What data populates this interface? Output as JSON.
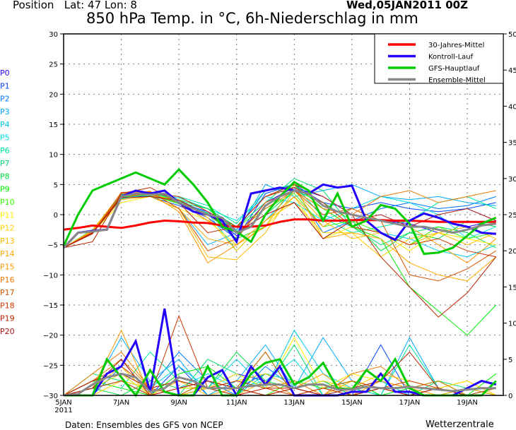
{
  "header": {
    "position": "Position   Lat: 47 Lon: 8",
    "run": "Wed,05JAN2011  00Z",
    "title": "850 hPa Temp. in °C, 6h-Niederschlag in mm"
  },
  "footer": {
    "source": "Daten: Ensembles des GFS von NCEP",
    "brand": "Wetterzentrale"
  },
  "chart_data": {
    "type": "line",
    "title": "850 hPa Temp. in °C, 6h-Niederschlag in mm",
    "x_unit": "days since run start (05JAN2011 00Z)",
    "x_ticks": [
      {
        "day": 0,
        "label": "5JAN",
        "sub": "2011"
      },
      {
        "day": 2,
        "label": "7JAN"
      },
      {
        "day": 4,
        "label": "9JAN"
      },
      {
        "day": 6,
        "label": "11JAN"
      },
      {
        "day": 8,
        "label": "13JAN"
      },
      {
        "day": 10,
        "label": "15JAN"
      },
      {
        "day": 12,
        "label": "17JAN"
      },
      {
        "day": 14,
        "label": "19JAN"
      }
    ],
    "xlim": [
      0,
      15.25
    ],
    "ylim_left": [
      -30,
      30
    ],
    "yticks_left": [
      -30,
      -25,
      -20,
      -15,
      -10,
      -5,
      0,
      5,
      10,
      15,
      20,
      25,
      30
    ],
    "ylim_right": [
      0,
      50
    ],
    "yticks_right": [
      0,
      5,
      10,
      15,
      20,
      25,
      30,
      35,
      40,
      45,
      50
    ],
    "grid": true,
    "legend_placement": "top-right",
    "main_step_days": 0.5,
    "member_step_days": 1,
    "main_series": [
      {
        "name": "30-Jahres-Mittel",
        "color": "#ff0000",
        "width": 3,
        "temp": [
          -2.5,
          -2.2,
          -1.8,
          -2,
          -2.2,
          -1.8,
          -1.3,
          -1,
          -1.1,
          -1.3,
          -1.4,
          -1.8,
          -2,
          -2,
          -1.8,
          -1.2,
          -0.8,
          -0.8,
          -1,
          -1,
          -0.9,
          -0.9,
          -0.9,
          -1,
          -1,
          -1.1,
          -1.2,
          -1.2,
          -1.2,
          -1.2,
          -1.2
        ],
        "precip": null
      },
      {
        "name": "Kontroll-Lauf",
        "color": "#2200ff",
        "width": 3,
        "temp": [
          -5.5,
          -3,
          -2.7,
          -2.5,
          3,
          4,
          3.5,
          4,
          2,
          0.5,
          0,
          -1,
          -4.5,
          3.5,
          4,
          4.5,
          4,
          3.5,
          5,
          4.5,
          4.8,
          -1,
          -3,
          -4.2,
          -1,
          0.2,
          -0.5,
          -1.5,
          -2,
          -3,
          -3.2
        ],
        "precip": [
          0,
          0,
          0,
          3,
          4,
          7.5,
          0.5,
          12,
          0,
          0,
          2.5,
          3.5,
          0,
          4,
          1.5,
          4,
          0,
          0,
          0,
          0,
          0.5,
          0.5,
          3,
          0.5,
          0.5,
          0,
          0,
          0,
          1,
          2,
          1.5
        ]
      },
      {
        "name": "GFS-Hauptlauf",
        "color": "#00cc00",
        "width": 3,
        "temp": [
          -5.2,
          0,
          4,
          5,
          6,
          7,
          6,
          5,
          7.5,
          5,
          2,
          -2,
          -2.8,
          -4.5,
          0,
          3,
          5.4,
          4,
          -1,
          3.5,
          -2,
          -1,
          1.6,
          1,
          -1.5,
          -6.5,
          -6.3,
          -5.5,
          -3.5,
          -1.5,
          -0.5
        ],
        "precip": [
          0,
          0,
          0,
          5,
          2.5,
          0,
          3.5,
          0.5,
          0,
          0,
          4,
          0,
          0,
          3,
          4.5,
          5,
          1.5,
          2.5,
          4.5,
          1,
          0.8,
          3.5,
          2,
          5,
          1,
          0,
          0,
          0,
          0,
          0,
          2
        ]
      },
      {
        "name": "Ensemble-Mittel",
        "color": "#888888",
        "width": 3,
        "temp": [
          -5.5,
          -3,
          -2.8,
          -2.5,
          3,
          3.5,
          3.3,
          3.5,
          2,
          1,
          0,
          -0.5,
          -3,
          -2,
          1.5,
          3,
          4,
          3.5,
          1.5,
          0.5,
          0,
          -0.5,
          -1,
          -1.5,
          -2,
          -2,
          -2.5,
          -3,
          -2.5,
          -1.8,
          -1.5
        ],
        "precip": [
          0,
          0.2,
          1.5,
          2.5,
          3,
          2.5,
          0.5,
          1,
          2.5,
          2,
          1,
          1,
          1,
          1.3,
          1.5,
          1.5,
          1,
          1.5,
          1.5,
          0.8,
          0.8,
          1.2,
          1,
          1,
          1.2,
          1,
          0.8,
          0.6,
          0.8,
          1,
          1
        ]
      }
    ],
    "members": [
      {
        "name": "P0",
        "color": "#3300ff",
        "temp": [
          -5.5,
          -2.8,
          3.2,
          3.5,
          2,
          0.5,
          -3.5,
          2,
          4.5,
          3,
          0,
          -1,
          -1.5,
          -3,
          -2,
          -1
        ],
        "precip": [
          0,
          2,
          5,
          1,
          0,
          1,
          3,
          2,
          0,
          0,
          1,
          0,
          0,
          0,
          1,
          0
        ]
      },
      {
        "name": "P1",
        "color": "#0044ff",
        "temp": [
          -5.5,
          -3,
          3,
          3,
          1.5,
          -0.5,
          -4,
          3.5,
          5,
          2,
          1,
          2,
          1,
          0.5,
          1,
          2
        ],
        "precip": [
          0,
          1,
          3,
          0,
          4,
          0,
          1,
          3,
          1,
          0,
          0,
          7,
          0,
          1,
          0,
          0
        ]
      },
      {
        "name": "P2",
        "color": "#0077ff",
        "temp": [
          -5.5,
          -2.6,
          2.8,
          3.8,
          2.5,
          0,
          -2.5,
          4,
          4.5,
          -3,
          -1,
          1,
          2,
          1,
          1.5,
          3
        ],
        "precip": [
          0,
          0,
          4,
          1,
          6,
          2,
          0,
          4,
          1,
          2,
          0,
          1,
          0,
          0,
          0,
          0
        ]
      },
      {
        "name": "P3",
        "color": "#00aaff",
        "temp": [
          -5.5,
          -2.7,
          3.4,
          3,
          1,
          -5,
          -3,
          5,
          3,
          4,
          5,
          3,
          2.5,
          3,
          2,
          1.5
        ],
        "precip": [
          0,
          1,
          8,
          2,
          5,
          0,
          2,
          7,
          1,
          8,
          2,
          0,
          8,
          1,
          0,
          0
        ]
      },
      {
        "name": "P4",
        "color": "#00ccee",
        "temp": [
          -5.5,
          -3.1,
          3,
          3.2,
          2.2,
          0.3,
          -6,
          -1,
          4,
          0,
          -2,
          -3,
          -4,
          -6,
          -7,
          -5
        ],
        "precip": [
          0,
          2,
          3,
          1,
          4,
          1,
          5,
          1,
          9,
          3,
          1,
          2,
          0,
          1,
          0,
          0
        ]
      },
      {
        "name": "P5",
        "color": "#00e0e0",
        "temp": [
          -5.5,
          -2.9,
          2.6,
          3.4,
          2.8,
          1,
          -1,
          3,
          2,
          -1,
          1,
          3,
          2,
          0,
          -4,
          -2
        ],
        "precip": [
          0,
          1,
          2,
          0,
          1,
          3,
          1,
          2,
          5,
          0,
          1,
          0,
          1,
          2,
          0,
          1
        ]
      },
      {
        "name": "P6",
        "color": "#00e8a0",
        "temp": [
          -5.5,
          -2.5,
          3.1,
          3.6,
          3,
          1.5,
          -1.5,
          4,
          5,
          -0.5,
          -3,
          -2,
          -1,
          2,
          3,
          1
        ],
        "precip": [
          0,
          2,
          1,
          6,
          2,
          1,
          0,
          3,
          2,
          1,
          1,
          0,
          7,
          1,
          0,
          0
        ]
      },
      {
        "name": "P7",
        "color": "#00e070",
        "temp": [
          -5.5,
          -2.8,
          3.3,
          3.1,
          2,
          1,
          -2,
          2,
          6,
          4,
          -2,
          -5,
          -3,
          -2,
          -3,
          -5.5
        ],
        "precip": [
          0,
          3,
          2,
          1,
          0,
          5,
          3,
          1,
          7,
          0,
          2,
          1,
          0,
          2,
          1,
          0
        ]
      },
      {
        "name": "P8",
        "color": "#00dd40",
        "temp": [
          -5.5,
          -3,
          2.9,
          3.5,
          2.5,
          1,
          -3,
          0,
          4,
          2,
          -1,
          -6,
          -3,
          -4,
          -1,
          -2
        ],
        "precip": [
          0,
          1,
          0,
          2,
          1,
          1,
          6,
          2,
          1,
          2,
          0,
          1,
          0,
          1,
          0,
          0
        ]
      },
      {
        "name": "P9",
        "color": "#00ee00",
        "temp": [
          -5.5,
          -2.7,
          3,
          3.3,
          1.8,
          0.2,
          -4,
          -2,
          5,
          1,
          -2,
          -4,
          -12,
          -16,
          -20,
          -15
        ],
        "precip": [
          0,
          2,
          1,
          0,
          3,
          4,
          1,
          6,
          0,
          1,
          2,
          0,
          1,
          2,
          0,
          3
        ]
      },
      {
        "name": "P10",
        "color": "#33ff00",
        "temp": [
          -5.5,
          -2.9,
          2.7,
          3.7,
          2.2,
          0,
          -2,
          1,
          3.5,
          -2,
          -1,
          -3,
          -5,
          -2,
          -4,
          -3
        ],
        "precip": [
          0,
          1,
          2,
          1,
          0,
          2,
          1,
          0,
          2,
          1,
          0,
          1,
          0,
          0,
          1,
          0
        ]
      },
      {
        "name": "P11",
        "color": "#ffee00",
        "temp": [
          -5.5,
          -3,
          2,
          3,
          1,
          -1,
          -5,
          -2,
          3,
          -4,
          -2,
          -3,
          -6,
          -3,
          -4,
          -5
        ],
        "precip": [
          0,
          1,
          3,
          0,
          1,
          1,
          3,
          1,
          8,
          1,
          3,
          2,
          1,
          1,
          2,
          0
        ]
      },
      {
        "name": "P12",
        "color": "#ffd000",
        "temp": [
          -5.5,
          -2.6,
          3.5,
          3.2,
          2.5,
          -0.5,
          -6,
          -1,
          2,
          -3,
          -3,
          -7,
          -4,
          -3,
          -2,
          -4
        ],
        "precip": [
          0,
          0,
          2,
          1,
          0,
          1,
          2,
          3,
          1,
          2,
          1,
          3,
          2,
          1,
          2,
          0
        ]
      },
      {
        "name": "P13",
        "color": "#ffbb00",
        "temp": [
          -5.5,
          -2.8,
          3.2,
          3.9,
          1,
          -7,
          -7.5,
          -3,
          4,
          -1,
          -4,
          -3,
          -5,
          -3,
          -5,
          -3
        ],
        "precip": [
          0,
          1,
          4,
          0,
          2,
          0,
          1,
          0,
          1,
          0,
          2,
          1,
          0,
          1,
          0,
          0
        ]
      },
      {
        "name": "P14",
        "color": "#ffaa00",
        "temp": [
          -5.5,
          -3,
          2.5,
          3,
          1,
          -4,
          -5,
          -2,
          5,
          -4,
          -3,
          -4,
          -8,
          -10,
          -11,
          -7
        ],
        "precip": [
          0,
          2,
          5,
          1,
          0,
          1,
          0,
          2,
          0,
          1,
          0,
          1,
          0,
          0,
          1,
          0
        ]
      },
      {
        "name": "P15",
        "color": "#ff9900",
        "temp": [
          -5.5,
          -2.7,
          3.6,
          3.5,
          0.5,
          -8,
          -5,
          -1,
          3,
          -2,
          1,
          -1,
          -2,
          -5,
          -8,
          -4
        ],
        "precip": [
          0,
          1,
          9,
          0,
          1,
          2,
          1,
          0,
          1,
          3,
          0,
          2,
          1,
          0,
          0,
          0
        ]
      },
      {
        "name": "P16",
        "color": "#ee7700",
        "temp": [
          -5.5,
          -2.9,
          3,
          3.4,
          2,
          -1,
          -3,
          1,
          4,
          1,
          0,
          3,
          4,
          2,
          3,
          4
        ],
        "precip": [
          0,
          3,
          6,
          1,
          2,
          1,
          0,
          1,
          2,
          0,
          3,
          4,
          1,
          2,
          0,
          0
        ]
      },
      {
        "name": "P17",
        "color": "#dd5500",
        "temp": [
          -5.5,
          -3.2,
          3.7,
          3.8,
          1,
          -6,
          -4,
          2,
          4,
          0,
          1,
          -1,
          -10,
          -11,
          -9,
          -6
        ],
        "precip": [
          0,
          2,
          4,
          1,
          0,
          2,
          1,
          6,
          0,
          1,
          2,
          1,
          0,
          1,
          0,
          0
        ]
      },
      {
        "name": "P18",
        "color": "#cc3300",
        "temp": [
          -5.5,
          -3,
          3.1,
          3.5,
          3,
          0.5,
          -2,
          3,
          4.5,
          2,
          -2,
          -3,
          -5,
          -4,
          -6,
          -7
        ],
        "precip": [
          0,
          1,
          2,
          0,
          11,
          1,
          2,
          1,
          0,
          1,
          0,
          1,
          2,
          1,
          0,
          1
        ]
      },
      {
        "name": "P19",
        "color": "#bb2200",
        "temp": [
          -5.5,
          -4.5,
          3.5,
          4.5,
          2,
          -3,
          -2,
          3,
          5,
          3,
          0,
          -7,
          -12,
          -17,
          -13,
          -7
        ],
        "precip": [
          0,
          2,
          3,
          1,
          2,
          1,
          0,
          1,
          1,
          0,
          1,
          2,
          6,
          1,
          0,
          0
        ]
      },
      {
        "name": "P20",
        "color": "#aa1111",
        "temp": [
          -5.5,
          -3.1,
          2.8,
          3,
          2.4,
          0,
          -3,
          0,
          2,
          -4,
          -1,
          0,
          -2,
          0,
          1,
          -1
        ],
        "precip": [
          0,
          1,
          5,
          0,
          1,
          2,
          1,
          0,
          1,
          0,
          0,
          1,
          0,
          1,
          0,
          0
        ]
      }
    ]
  }
}
